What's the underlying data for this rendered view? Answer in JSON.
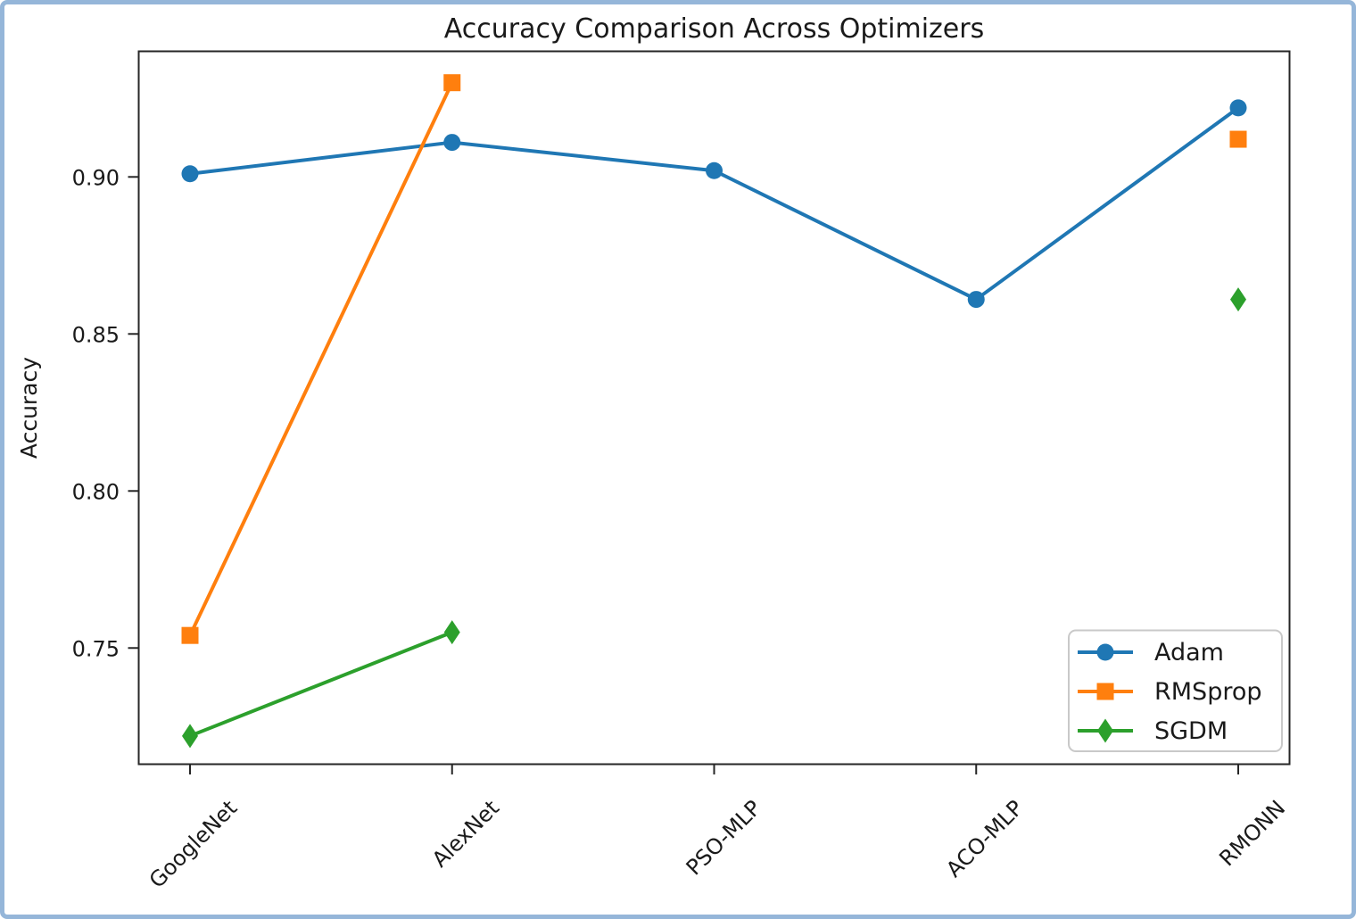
{
  "frame": {
    "border_color": "#95b6d9",
    "background_color": "#ffffff"
  },
  "chart_data": {
    "type": "line",
    "title": "Accuracy Comparison Across Optimizers",
    "xlabel": "",
    "ylabel": "Accuracy",
    "categories": [
      "GoogleNet",
      "AlexNet",
      "PSO-MLP",
      "ACO-MLP",
      "RMONN"
    ],
    "series": [
      {
        "name": "Adam",
        "color": "#1f77b4",
        "marker": "circle",
        "values": [
          0.901,
          0.911,
          0.902,
          0.861,
          0.922
        ]
      },
      {
        "name": "RMSprop",
        "color": "#ff7f0e",
        "marker": "square",
        "values": [
          0.754,
          0.93,
          null,
          null,
          0.912
        ]
      },
      {
        "name": "SGDM",
        "color": "#2ca02c",
        "marker": "diamond",
        "values": [
          0.722,
          0.755,
          null,
          null,
          0.861
        ]
      }
    ],
    "ylim": [
      0.713,
      0.94
    ],
    "yticks": [
      0.75,
      0.8,
      0.85,
      0.9
    ],
    "ytick_labels": [
      "0.75",
      "0.80",
      "0.85",
      "0.90"
    ],
    "grid": false,
    "legend_position": "lower right",
    "axis_color": "#262626"
  }
}
